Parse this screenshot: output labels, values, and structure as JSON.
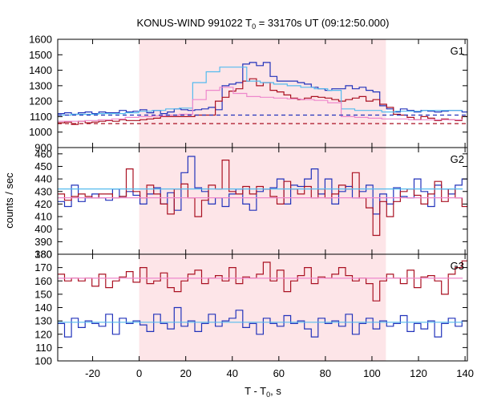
{
  "chart_data": {
    "type": "line",
    "title": "KONUS-WIND 991022 T",
    "title_sub": "0",
    "title_rest": " = 33170s UT (09:12:50.000)",
    "xlabel": "T - T",
    "xlabel_sub": "0",
    "xlabel_rest": ", s",
    "ylabel": "counts / sec",
    "xlim": [
      -35,
      141
    ],
    "xticks": [
      -20,
      0,
      20,
      40,
      60,
      80,
      100,
      120,
      140
    ],
    "highlight_interval": [
      0,
      106
    ],
    "highlight_color": "#fde5e8",
    "colors": {
      "blue": "#2233bb",
      "red": "#aa1122",
      "cyan": "#55bbee",
      "pink": "#ee88cc"
    },
    "panels": [
      {
        "label": "G1",
        "ylim": [
          900,
          1600
        ],
        "yticks": [
          900,
          1000,
          1100,
          1200,
          1300,
          1400,
          1500,
          1600
        ],
        "series": [
          {
            "color": "blue",
            "kind": "step",
            "x0": -35,
            "dx": 2.944,
            "values": [
              1120,
              1125,
              1115,
              1125,
              1130,
              1120,
              1130,
              1125,
              1125,
              1140,
              1130,
              1135,
              1145,
              1125,
              1140,
              1120,
              1130,
              1150,
              1145,
              1140,
              1145,
              1150,
              1160,
              1145,
              1300,
              1310,
              1320,
              1440,
              1450,
              1430,
              1450,
              1360,
              1330,
              1330,
              1330,
              1320,
              1310,
              1290,
              1280,
              1270,
              1280,
              1280,
              1300,
              1280,
              1290,
              1270,
              1260,
              1170,
              1150,
              1130,
              1150,
              1140,
              1130,
              1140,
              1135,
              1130,
              1135,
              1140,
              1140,
              1130,
              1120
            ]
          },
          {
            "color": "red",
            "kind": "step",
            "x0": -35,
            "dx": 2.944,
            "values": [
              1060,
              1065,
              1050,
              1070,
              1060,
              1065,
              1070,
              1075,
              1070,
              1080,
              1075,
              1075,
              1080,
              1085,
              1090,
              1100,
              1100,
              1100,
              1100,
              1100,
              1110,
              1110,
              1110,
              1200,
              1225,
              1265,
              1280,
              1330,
              1345,
              1300,
              1320,
              1270,
              1260,
              1240,
              1220,
              1210,
              1220,
              1230,
              1225,
              1220,
              1210,
              1200,
              1210,
              1220,
              1230,
              1200,
              1210,
              1180,
              1160,
              1115,
              1110,
              1095,
              1080,
              1100,
              1090,
              1075,
              1085,
              1080,
              1075,
              1100,
              1070
            ]
          },
          {
            "color": "cyan",
            "kind": "step",
            "x0": -35,
            "dx": 5.8,
            "values": [
              1110,
              1115,
              1115,
              1120,
              1120,
              1125,
              1135,
              1140,
              1150,
              1155,
              1320,
              1390,
              1420,
              1420,
              1330,
              1320,
              1310,
              1300,
              1290,
              1280,
              1270,
              1150,
              1140,
              1140,
              1130,
              1135,
              1135,
              1140,
              1140,
              1140
            ]
          },
          {
            "color": "pink",
            "kind": "step",
            "x0": -35,
            "dx": 5.8,
            "values": [
              1070,
              1070,
              1075,
              1080,
              1085,
              1095,
              1100,
              1105,
              1110,
              1115,
              1210,
              1270,
              1290,
              1250,
              1230,
              1225,
              1220,
              1215,
              1210,
              1205,
              1190,
              1100,
              1095,
              1090,
              1085,
              1085,
              1080,
              1080,
              1080,
              1080
            ]
          },
          {
            "color": "blue",
            "kind": "dashed",
            "x_range": [
              -35,
              141
            ],
            "y": 1110
          },
          {
            "color": "red",
            "kind": "dashed",
            "x_range": [
              -35,
              141
            ],
            "y": 1055
          }
        ]
      },
      {
        "label": "G2",
        "ylim": [
          380,
          465
        ],
        "yticks": [
          380,
          390,
          400,
          410,
          420,
          430,
          440,
          450,
          460
        ],
        "series": [
          {
            "color": "blue",
            "kind": "step",
            "x0": -35,
            "dx": 2.944,
            "values": [
              422,
              418,
              435,
              422,
              425,
              428,
              425,
              423,
              432,
              426,
              430,
              427,
              420,
              428,
              433,
              420,
              429,
              415,
              445,
              458,
              433,
              430,
              420,
              425,
              418,
              428,
              432,
              420,
              415,
              430,
              432,
              433,
              440,
              420,
              435,
              434,
              440,
              448,
              428,
              440,
              420,
              430,
              434,
              425,
              430,
              435,
              412,
              428,
              420,
              433,
              426,
              425,
              440,
              430,
              418,
              435,
              432,
              428,
              435,
              440,
              430
            ]
          },
          {
            "color": "red",
            "kind": "step",
            "x0": -35,
            "dx": 2.944,
            "values": [
              428,
              423,
              426,
              428,
              426,
              425,
              428,
              428,
              425,
              426,
              448,
              430,
              425,
              435,
              428,
              420,
              412,
              432,
              436,
              425,
              410,
              423,
              435,
              432,
              455,
              430,
              428,
              434,
              428,
              434,
              432,
              426,
              420,
              438,
              432,
              428,
              434,
              425,
              432,
              425,
              428,
              435,
              432,
              445,
              425,
              417,
              395,
              422,
              410,
              422,
              430,
              432,
              427,
              420,
              428,
              438,
              422,
              432,
              425,
              418,
              430
            ]
          },
          {
            "color": "cyan",
            "kind": "step",
            "x0": -35,
            "dx": 5.8,
            "values": [
              432,
              432,
              432,
              432,
              432,
              432,
              432,
              432,
              432,
              432,
              432,
              432,
              432,
              432,
              432,
              432,
              432,
              432,
              432,
              432,
              432,
              432,
              432,
              432,
              432,
              432,
              432,
              432,
              432,
              432
            ]
          },
          {
            "color": "pink",
            "kind": "step",
            "x0": -35,
            "dx": 5.8,
            "values": [
              425,
              425,
              425,
              425,
              425,
              425,
              425,
              425,
              425,
              425,
              425,
              425,
              425,
              425,
              425,
              425,
              425,
              425,
              425,
              425,
              425,
              425,
              425,
              425,
              425,
              425,
              425,
              425,
              425,
              425
            ]
          }
        ]
      },
      {
        "label": "G3",
        "ylim": [
          100,
          180
        ],
        "yticks": [
          100,
          110,
          120,
          130,
          140,
          150,
          160,
          170,
          180
        ],
        "series": [
          {
            "color": "red",
            "kind": "step",
            "x0": -35,
            "dx": 2.944,
            "values": [
              165,
              160,
              162,
              160,
              162,
              156,
              165,
              155,
              160,
              163,
              167,
              159,
              170,
              158,
              160,
              166,
              155,
              152,
              160,
              165,
              168,
              158,
              162,
              164,
              160,
              170,
              158,
              163,
              162,
              165,
              174,
              160,
              168,
              152,
              160,
              164,
              170,
              158,
              163,
              162,
              165,
              170,
              164,
              160,
              162,
              158,
              145,
              160,
              165,
              162,
              158,
              168,
              155,
              163,
              164,
              160,
              150,
              165,
              170,
              175,
              168
            ]
          },
          {
            "color": "blue",
            "kind": "step",
            "x0": -35,
            "dx": 2.944,
            "values": [
              128,
              118,
              132,
              125,
              130,
              128,
              126,
              135,
              120,
              132,
              128,
              130,
              127,
              122,
              135,
              128,
              124,
              140,
              126,
              130,
              122,
              128,
              135,
              126,
              130,
              132,
              138,
              125,
              128,
              120,
              132,
              128,
              126,
              134,
              128,
              130,
              124,
              118,
              132,
              128,
              130,
              126,
              135,
              120,
              128,
              132,
              124,
              130,
              126,
              128,
              134,
              122,
              128,
              124,
              130,
              118,
              128,
              132,
              126,
              130,
              120
            ]
          },
          {
            "color": "cyan",
            "kind": "step",
            "x0": -35,
            "dx": 5.8,
            "values": [
              129,
              129,
              129,
              129,
              129,
              129,
              129,
              129,
              129,
              129,
              129,
              129,
              129,
              129,
              129,
              129,
              129,
              129,
              129,
              129,
              129,
              129,
              129,
              129,
              129,
              129,
              129,
              129,
              129,
              129
            ]
          },
          {
            "color": "pink",
            "kind": "step",
            "x0": -35,
            "dx": 5.8,
            "values": [
              162,
              162,
              162,
              162,
              162,
              162,
              162,
              162,
              162,
              162,
              162,
              162,
              162,
              162,
              162,
              162,
              162,
              162,
              162,
              162,
              162,
              162,
              162,
              162,
              162,
              162,
              162,
              162,
              162,
              162
            ]
          }
        ]
      }
    ]
  }
}
